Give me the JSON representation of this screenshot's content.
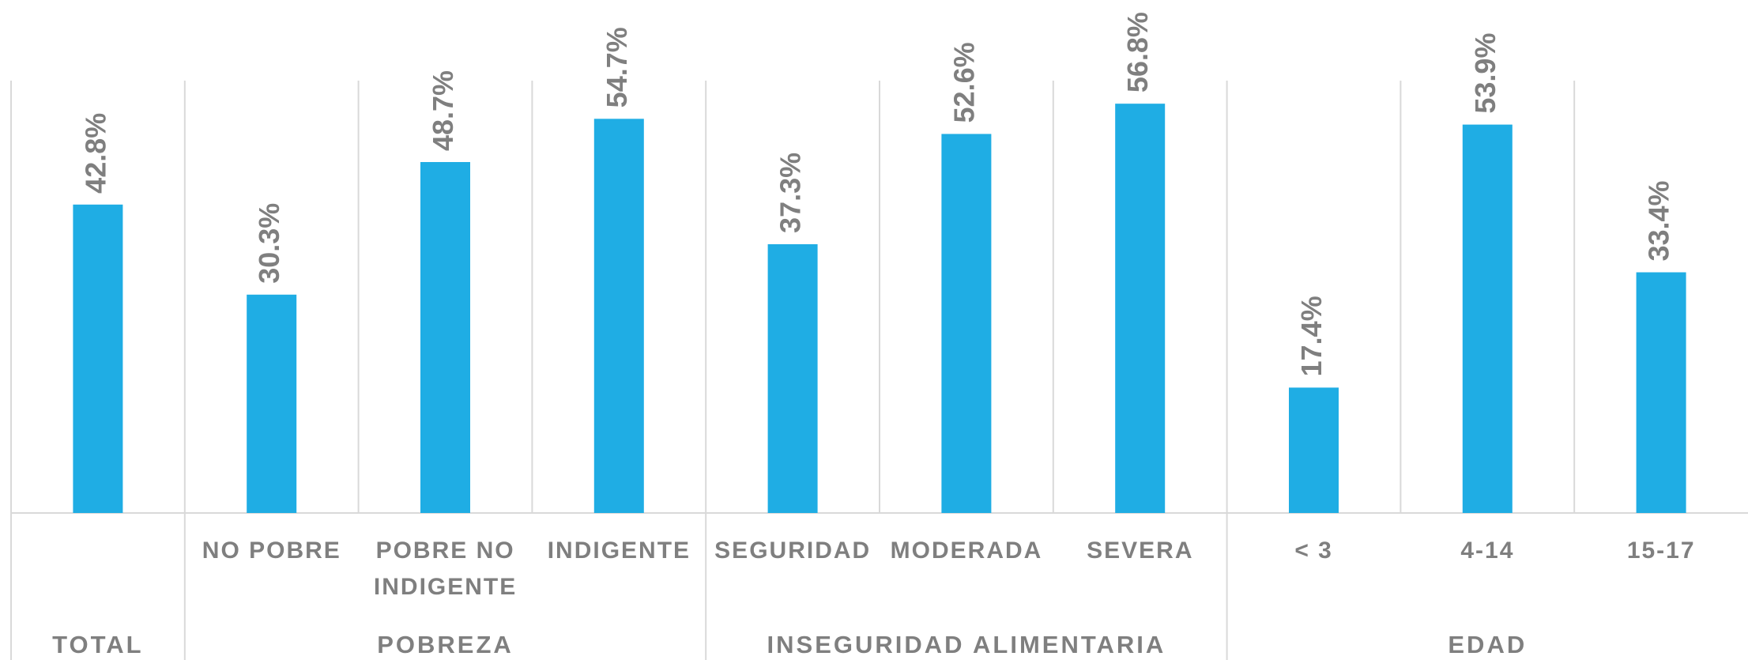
{
  "chart_data": {
    "type": "bar",
    "color": "#1fade4",
    "ylim": [
      0,
      60
    ],
    "groups": [
      {
        "name": "TOTAL",
        "categories": [
          null
        ],
        "values": [
          42.8
        ],
        "value_labels": [
          "42.8%"
        ]
      },
      {
        "name": "POBREZA",
        "categories": [
          "NO POBRE",
          "POBRE NO INDIGENTE",
          "INDIGENTE"
        ],
        "values": [
          30.3,
          48.7,
          54.7
        ],
        "value_labels": [
          "30.3%",
          "48.7%",
          "54.7%"
        ]
      },
      {
        "name": "INSEGURIDAD ALIMENTARIA",
        "categories": [
          "SEGURIDAD",
          "MODERADA",
          "SEVERA"
        ],
        "values": [
          37.3,
          52.6,
          56.8
        ],
        "value_labels": [
          "37.3%",
          "52.6%",
          "56.8%"
        ]
      },
      {
        "name": "EDAD",
        "categories": [
          "< 3",
          "4-14",
          "15-17"
        ],
        "values": [
          17.4,
          53.9,
          33.4
        ],
        "value_labels": [
          "17.4%",
          "53.9%",
          "33.4%"
        ]
      }
    ]
  }
}
